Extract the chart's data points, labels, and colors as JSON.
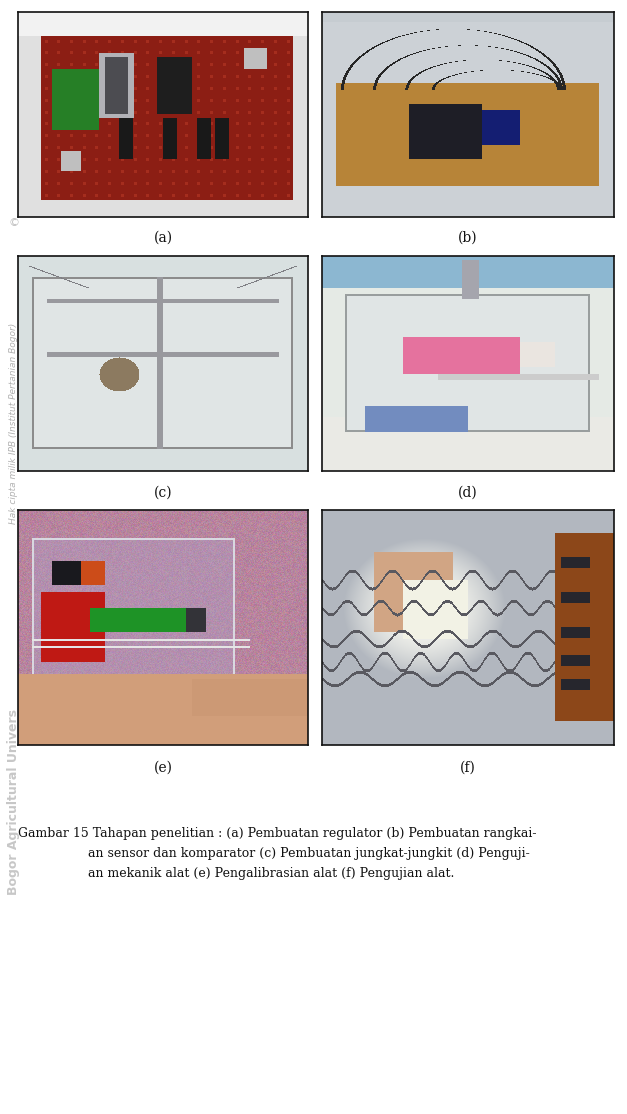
{
  "figure_width": 6.27,
  "figure_height": 11.14,
  "dpi": 100,
  "background_color": "#ffffff",
  "labels": [
    "(a)",
    "(b)",
    "(c)",
    "(d)",
    "(e)",
    "(f)"
  ],
  "caption_line1": "Gambar 15 Tahapan penelitian : (a) Pembuatan regulator (b) Pembuatan rangkai-",
  "caption_line2": "an sensor dan komparator (c) Pembuatan jungkat-jungkit (d) Penguji-",
  "caption_line3": "an mekanik alat (e) Pengalibrasian alat (f) Pengujian alat.",
  "caption_fontsize": 9.0,
  "label_fontsize": 10,
  "watermark1": "Hak cipta milik IPB (Institut Pertanian Bogor)",
  "watermark2": "Bogor Agricultural Univers",
  "border_color": "#111111"
}
